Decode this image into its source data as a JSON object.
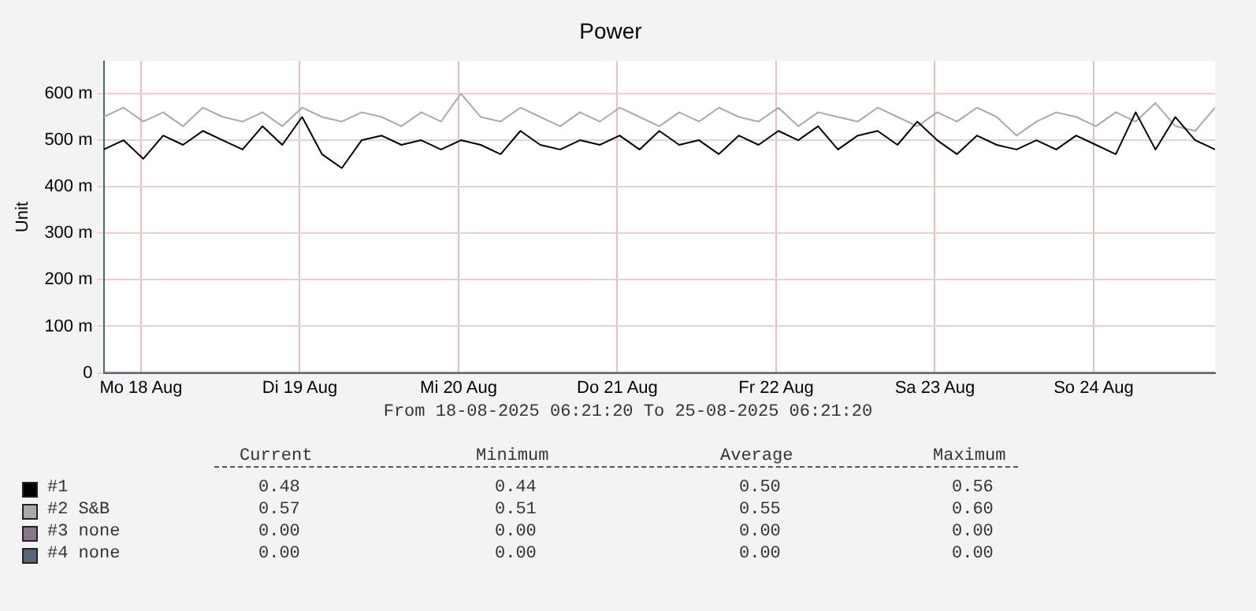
{
  "chart_data": {
    "type": "line",
    "title": "Power",
    "ylabel": "Unit",
    "x": [
      "2025-08-18T06:21",
      "2025-08-18T09:21",
      "2025-08-18T12:21",
      "2025-08-18T15:21",
      "2025-08-18T18:21",
      "2025-08-18T21:21",
      "2025-08-19T00:21",
      "2025-08-19T03:21",
      "2025-08-19T06:21",
      "2025-08-19T09:21",
      "2025-08-19T12:21",
      "2025-08-19T15:21",
      "2025-08-19T18:21",
      "2025-08-19T21:21",
      "2025-08-20T00:21",
      "2025-08-20T03:21",
      "2025-08-20T06:21",
      "2025-08-20T09:21",
      "2025-08-20T12:21",
      "2025-08-20T15:21",
      "2025-08-20T18:21",
      "2025-08-20T21:21",
      "2025-08-21T00:21",
      "2025-08-21T03:21",
      "2025-08-21T06:21",
      "2025-08-21T09:21",
      "2025-08-21T12:21",
      "2025-08-21T15:21",
      "2025-08-21T18:21",
      "2025-08-21T21:21",
      "2025-08-22T00:21",
      "2025-08-22T03:21",
      "2025-08-22T06:21",
      "2025-08-22T09:21",
      "2025-08-22T12:21",
      "2025-08-22T15:21",
      "2025-08-22T18:21",
      "2025-08-22T21:21",
      "2025-08-23T00:21",
      "2025-08-23T03:21",
      "2025-08-23T06:21",
      "2025-08-23T09:21",
      "2025-08-23T12:21",
      "2025-08-23T15:21",
      "2025-08-23T18:21",
      "2025-08-23T21:21",
      "2025-08-24T00:21",
      "2025-08-24T03:21",
      "2025-08-24T06:21",
      "2025-08-24T09:21",
      "2025-08-24T12:21",
      "2025-08-24T15:21",
      "2025-08-24T18:21",
      "2025-08-24T21:21",
      "2025-08-25T00:21",
      "2025-08-25T03:21",
      "2025-08-25T06:21"
    ],
    "series": [
      {
        "name": "#1",
        "color": "#000000",
        "values": [
          480,
          500,
          460,
          510,
          490,
          520,
          500,
          480,
          530,
          490,
          550,
          470,
          440,
          500,
          510,
          490,
          500,
          480,
          500,
          490,
          470,
          520,
          490,
          480,
          500,
          490,
          510,
          480,
          520,
          490,
          500,
          470,
          510,
          490,
          520,
          500,
          530,
          480,
          510,
          520,
          490,
          540,
          500,
          470,
          510,
          490,
          480,
          500,
          480,
          510,
          490,
          470,
          560,
          480,
          550,
          500,
          480
        ]
      },
      {
        "name": "#2 S&B",
        "color": "#aaaaaa",
        "values": [
          550,
          570,
          540,
          560,
          530,
          570,
          550,
          540,
          560,
          530,
          570,
          550,
          540,
          560,
          550,
          530,
          560,
          540,
          600,
          550,
          540,
          570,
          550,
          530,
          560,
          540,
          570,
          550,
          530,
          560,
          540,
          570,
          550,
          540,
          570,
          530,
          560,
          550,
          540,
          570,
          550,
          530,
          560,
          540,
          570,
          550,
          510,
          540,
          560,
          550,
          530,
          560,
          540,
          580,
          530,
          520,
          570
        ]
      },
      {
        "name": "#3 none",
        "color": "#8a7490",
        "x": [
          "2025-08-18T06:21",
          "2025-08-25T06:21"
        ],
        "values": [
          0,
          0
        ]
      },
      {
        "name": "#4 none",
        "color": "#566577",
        "x": [
          "2025-08-18T06:21",
          "2025-08-25T06:21"
        ],
        "values": [
          0,
          0
        ]
      }
    ],
    "xlim": [
      "2025-08-18T06:21",
      "2025-08-25T06:21"
    ],
    "xticks": [
      {
        "value": "2025-08-18T12:00",
        "label": "Mo 18 Aug"
      },
      {
        "value": "2025-08-19T12:00",
        "label": "Di 19 Aug"
      },
      {
        "value": "2025-08-20T12:00",
        "label": "Mi 20 Aug"
      },
      {
        "value": "2025-08-21T12:00",
        "label": "Do 21 Aug"
      },
      {
        "value": "2025-08-22T12:00",
        "label": "Fr 22 Aug"
      },
      {
        "value": "2025-08-23T12:00",
        "label": "Sa 23 Aug"
      },
      {
        "value": "2025-08-24T12:00",
        "label": "So 24 Aug"
      }
    ],
    "ylim": [
      0,
      670
    ],
    "yticks": [
      0,
      {
        "value": 100,
        "label": "100 m"
      },
      {
        "value": 200,
        "label": "200 m"
      },
      {
        "value": 300,
        "label": "300 m"
      },
      {
        "value": 400,
        "label": "400 m"
      },
      {
        "value": 500,
        "label": "500 m"
      },
      {
        "value": 600,
        "label": "600 m"
      }
    ],
    "grid": true,
    "legend": "bottom",
    "marker": "none",
    "line_style": "solid",
    "annotations": [
      "From 18-08-2025 06:21:20 To 25-08-2025 06:21:20",
      "Current",
      "Minimum",
      "Average",
      "Maximum",
      "0.48",
      "0.44",
      "0.50",
      "0.56",
      "0.57",
      "0.51",
      "0.55",
      "0.60",
      "0.00",
      "0.00",
      "0.00",
      "0.00",
      "0.00",
      "0.00",
      "0.00",
      "0.00"
    ]
  }
}
